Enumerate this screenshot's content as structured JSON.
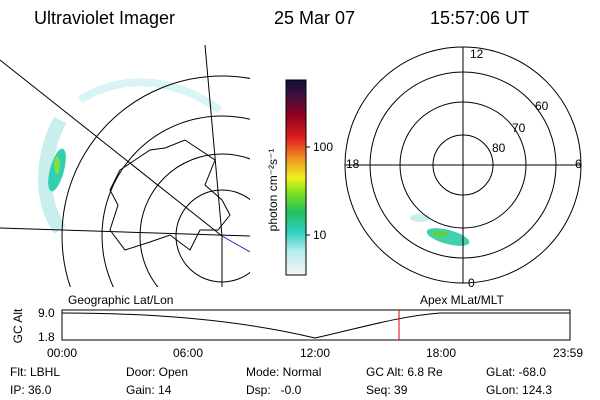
{
  "header": {
    "instrument": "Ultraviolet Imager",
    "date": "25 Mar 07",
    "time": "15:57:06 UT"
  },
  "colorbar": {
    "unit_label": "photon cm⁻²s⁻¹",
    "ticks": [
      "100",
      "10"
    ]
  },
  "polar_plot": {
    "mlt_labels": [
      "12",
      "0",
      "18",
      "6"
    ],
    "lat_labels": [
      "60",
      "70",
      "80"
    ]
  },
  "altitude_plot": {
    "left_title": "Geographic Lat/Lon",
    "right_title": "Apex MLat/MLT",
    "y_label": "GC Alt",
    "yticks": [
      "9.0",
      "1.8"
    ],
    "xticks": [
      "00:00",
      "06:00",
      "12:00",
      "18:00",
      "23:59"
    ]
  },
  "info": {
    "rows": [
      [
        "Flt: LBHL",
        "Door: Open",
        "Mode: Normal",
        "GC Alt: 6.8 Re",
        "GLat: -68.0"
      ],
      [
        "IP: 36.0",
        "Gain: 14",
        "Dsp:   -0.0",
        "Seq: 39",
        "GLon: 124.3"
      ]
    ]
  }
}
